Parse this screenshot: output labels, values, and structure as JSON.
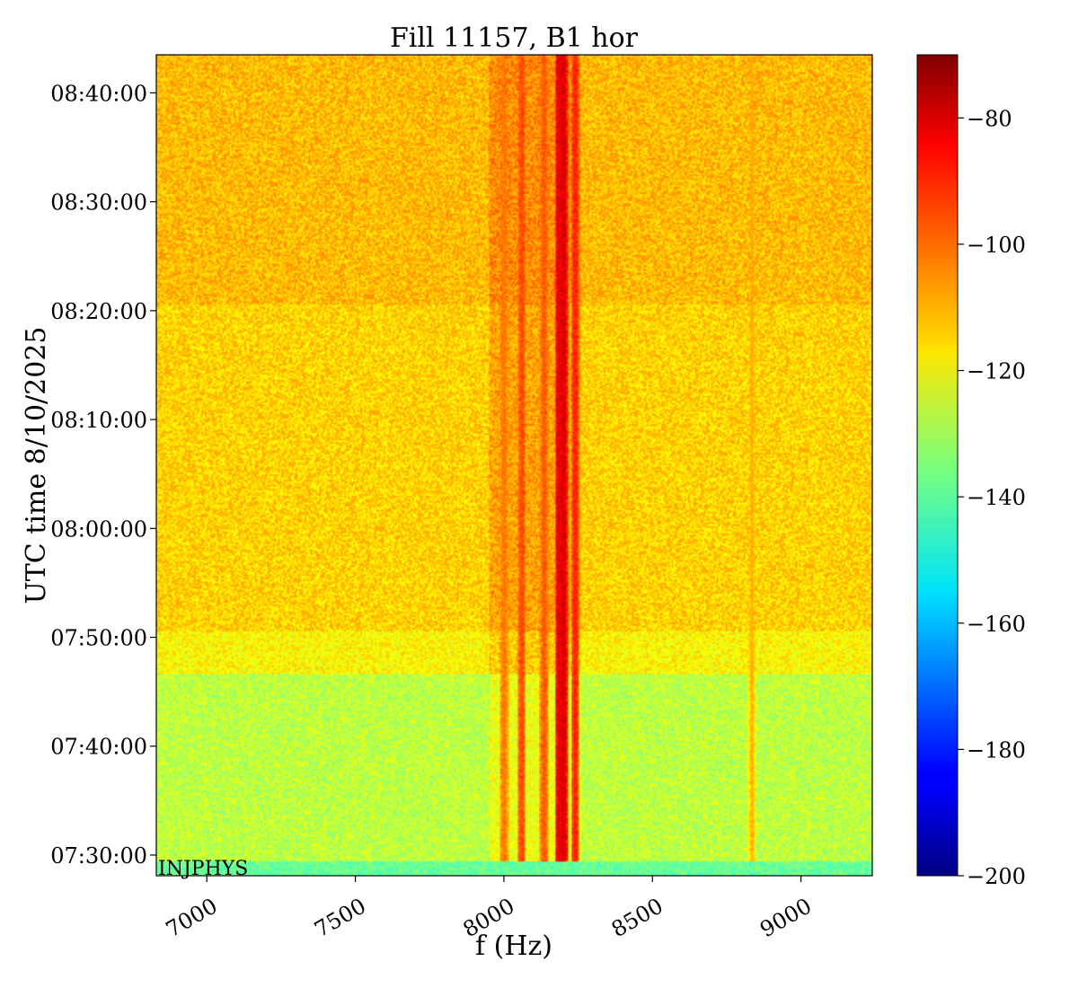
{
  "chart_data": {
    "type": "heatmap",
    "title": "Fill 11157, B1 hor",
    "xlabel": "f (Hz)",
    "ylabel": "UTC time 8/10/2025",
    "xlim": [
      6830,
      9240
    ],
    "ylim_minutes_after_0700": [
      28.1,
      103.5
    ],
    "x_ticks": [
      {
        "value": 7000,
        "label": "7000"
      },
      {
        "value": 7500,
        "label": "7500"
      },
      {
        "value": 8000,
        "label": "8000"
      },
      {
        "value": 8500,
        "label": "8500"
      },
      {
        "value": 9000,
        "label": "9000"
      }
    ],
    "y_ticks": [
      {
        "value": 30,
        "label": "07:30:00"
      },
      {
        "value": 40,
        "label": "07:40:00"
      },
      {
        "value": 50,
        "label": "07:50:00"
      },
      {
        "value": 60,
        "label": "08:00:00"
      },
      {
        "value": 70,
        "label": "08:10:00"
      },
      {
        "value": 80,
        "label": "08:20:00"
      },
      {
        "value": 90,
        "label": "08:30:00"
      },
      {
        "value": 100,
        "label": "08:40:00"
      }
    ],
    "annotation": "INJPHYS",
    "colorbar": {
      "colormap": "jet",
      "range": [
        -200,
        -70
      ],
      "ticks": [
        {
          "value": -80,
          "label": "−80"
        },
        {
          "value": -100,
          "label": "−100"
        },
        {
          "value": -120,
          "label": "−120"
        },
        {
          "value": -140,
          "label": "−140"
        },
        {
          "value": -160,
          "label": "−160"
        },
        {
          "value": -180,
          "label": "−180"
        },
        {
          "value": -200,
          "label": "−200"
        }
      ]
    },
    "background_level_by_time": [
      {
        "from": 28.1,
        "to": 29.4,
        "level": -138
      },
      {
        "from": 29.4,
        "to": 46.7,
        "level": -127
      },
      {
        "from": 46.7,
        "to": 50.5,
        "level": -118
      },
      {
        "from": 50.5,
        "to": 80.5,
        "level": -113
      },
      {
        "from": 80.5,
        "to": 103.5,
        "level": -110
      }
    ],
    "spectral_lines": [
      {
        "f": 8000,
        "level": -104
      },
      {
        "f": 8060,
        "level": -98
      },
      {
        "f": 8135,
        "level": -100
      },
      {
        "f": 8185,
        "level": -86
      },
      {
        "f": 8200,
        "level": -84
      },
      {
        "f": 8240,
        "level": -93
      },
      {
        "f": 8835,
        "level": -108
      }
    ]
  }
}
